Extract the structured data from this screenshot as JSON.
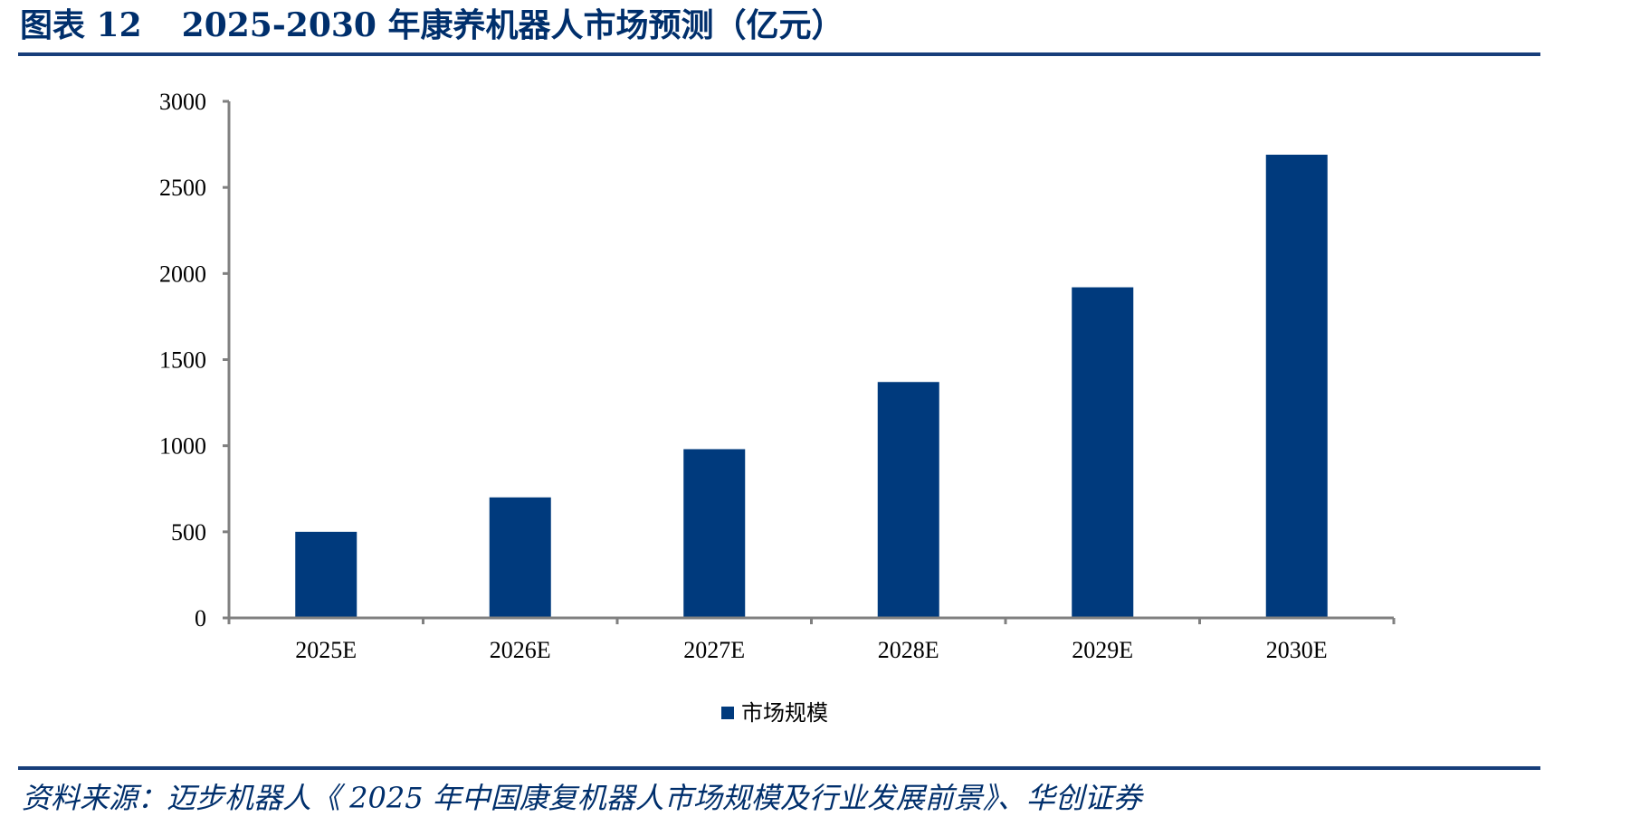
{
  "figure": {
    "label": "图表 12",
    "title": "2025-2030 年康养机器人市场预测（亿元）"
  },
  "source_note": "资料来源：迈步机器人《 2025 年中国康复机器人市场规模及行业发展前景》、华创证券",
  "colors": {
    "bar": "#003a7d",
    "axis": "#808080",
    "rule": "#173e7a",
    "title": "#002f6c"
  },
  "chart_data": {
    "type": "bar",
    "categories": [
      "2025E",
      "2026E",
      "2027E",
      "2028E",
      "2029E",
      "2030E"
    ],
    "series": [
      {
        "name": "市场规模",
        "values": [
          500,
          700,
          980,
          1370,
          1920,
          2690
        ]
      }
    ],
    "ylim": [
      0,
      3000
    ],
    "yticks": [
      0,
      500,
      1000,
      1500,
      2000,
      2500,
      3000
    ],
    "grid": false,
    "legend": "bottom-center"
  }
}
